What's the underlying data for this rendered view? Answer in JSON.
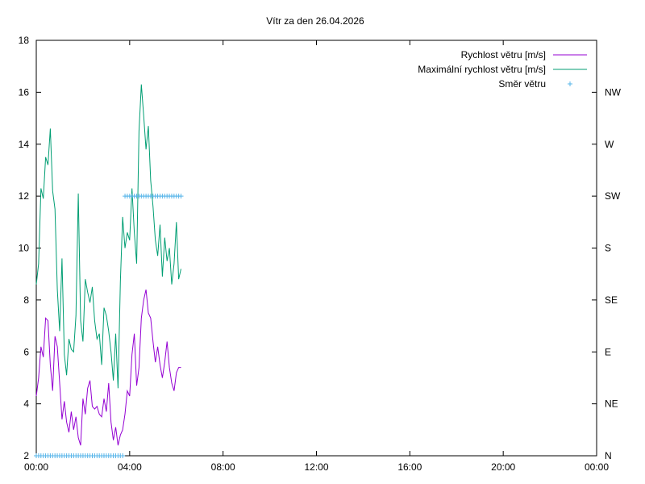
{
  "chart_data": {
    "type": "line",
    "title": "Vítr za den 26.04.2026",
    "x_ticks": [
      "00:00",
      "04:00",
      "08:00",
      "12:00",
      "16:00",
      "20:00",
      "00:00"
    ],
    "xlim_hours": [
      0,
      24
    ],
    "ylim": [
      2,
      18
    ],
    "y_ticks": [
      2,
      4,
      6,
      8,
      10,
      12,
      14,
      16,
      18
    ],
    "y2_ticks": [
      "N",
      "NE",
      "E",
      "SE",
      "S",
      "SW",
      "W",
      "NW"
    ],
    "legend_position": "top-right",
    "grid": false,
    "series": [
      {
        "name": "Rychlost větru [m/s]",
        "style": "line",
        "color": "#9400d3",
        "x": [
          0.0,
          0.1,
          0.2,
          0.3,
          0.4,
          0.5,
          0.6,
          0.7,
          0.8,
          0.9,
          1.0,
          1.1,
          1.2,
          1.3,
          1.4,
          1.5,
          1.6,
          1.7,
          1.8,
          1.9,
          2.0,
          2.1,
          2.2,
          2.3,
          2.4,
          2.5,
          2.6,
          2.7,
          2.8,
          2.9,
          3.0,
          3.1,
          3.2,
          3.3,
          3.4,
          3.5,
          3.6,
          3.7,
          3.8,
          3.9,
          4.0,
          4.1,
          4.2,
          4.3,
          4.4,
          4.5,
          4.6,
          4.7,
          4.8,
          4.9,
          5.0,
          5.1,
          5.2,
          5.3,
          5.4,
          5.5,
          5.6,
          5.7,
          5.8,
          5.9,
          6.0,
          6.1,
          6.2
        ],
        "values": [
          4.3,
          5.0,
          6.2,
          5.8,
          7.3,
          7.2,
          5.5,
          4.5,
          6.6,
          6.2,
          4.8,
          3.4,
          4.1,
          3.3,
          2.9,
          3.7,
          3.0,
          3.5,
          2.7,
          2.4,
          4.2,
          3.6,
          4.6,
          4.9,
          3.9,
          3.8,
          3.9,
          3.6,
          3.5,
          4.2,
          3.7,
          4.8,
          3.3,
          2.6,
          3.1,
          2.4,
          2.8,
          3.0,
          3.6,
          4.5,
          4.3,
          5.9,
          6.7,
          4.7,
          5.4,
          7.3,
          8.0,
          8.4,
          7.5,
          7.3,
          6.4,
          5.6,
          6.2,
          5.5,
          5.0,
          5.6,
          6.4,
          5.4,
          4.8,
          4.5,
          5.2,
          5.4,
          5.4
        ]
      },
      {
        "name": "Maximální rychlost větru [m/s]",
        "style": "line",
        "color": "#009e73",
        "x": [
          0.0,
          0.1,
          0.2,
          0.3,
          0.4,
          0.5,
          0.6,
          0.7,
          0.8,
          0.9,
          1.0,
          1.1,
          1.2,
          1.3,
          1.4,
          1.5,
          1.6,
          1.7,
          1.8,
          1.9,
          2.0,
          2.1,
          2.2,
          2.3,
          2.4,
          2.5,
          2.6,
          2.7,
          2.8,
          2.9,
          3.0,
          3.1,
          3.2,
          3.3,
          3.4,
          3.5,
          3.6,
          3.7,
          3.8,
          3.9,
          4.0,
          4.1,
          4.2,
          4.3,
          4.4,
          4.5,
          4.6,
          4.7,
          4.8,
          4.9,
          5.0,
          5.1,
          5.2,
          5.3,
          5.4,
          5.5,
          5.6,
          5.7,
          5.8,
          5.9,
          6.0,
          6.1,
          6.2
        ],
        "values": [
          8.6,
          9.4,
          12.3,
          11.9,
          13.5,
          13.2,
          14.6,
          12.2,
          11.5,
          8.4,
          6.8,
          9.6,
          5.9,
          5.1,
          6.5,
          6.1,
          6.0,
          7.4,
          12.1,
          7.2,
          6.4,
          8.8,
          8.3,
          7.9,
          8.5,
          7.2,
          6.5,
          6.7,
          5.5,
          7.7,
          7.4,
          6.8,
          6.0,
          4.9,
          6.7,
          4.6,
          8.7,
          11.2,
          10.0,
          10.6,
          10.3,
          12.3,
          10.6,
          9.4,
          14.5,
          16.3,
          15.1,
          13.8,
          14.7,
          12.6,
          11.6,
          10.3,
          9.7,
          10.9,
          8.9,
          10.4,
          9.5,
          10.0,
          8.6,
          9.4,
          11.0,
          8.8,
          9.2
        ]
      },
      {
        "name": "Směr větru",
        "style": "points",
        "color": "#56b4e9",
        "x": [
          0.0,
          0.1,
          0.2,
          0.3,
          0.4,
          0.5,
          0.6,
          0.7,
          0.8,
          0.9,
          1.0,
          1.1,
          1.2,
          1.3,
          1.4,
          1.5,
          1.6,
          1.7,
          1.8,
          1.9,
          2.0,
          2.1,
          2.2,
          2.3,
          2.4,
          2.5,
          2.6,
          2.7,
          2.8,
          2.9,
          3.0,
          3.1,
          3.2,
          3.3,
          3.4,
          3.5,
          3.6,
          3.7,
          3.8,
          3.9,
          4.0,
          4.1,
          4.2,
          4.3,
          4.4,
          4.5,
          4.6,
          4.7,
          4.8,
          4.9,
          5.0,
          5.1,
          5.2,
          5.3,
          5.4,
          5.5,
          5.6,
          5.7,
          5.8,
          5.9,
          6.0,
          6.1,
          6.2
        ],
        "values": [
          2,
          2,
          2,
          2,
          2,
          2,
          2,
          2,
          2,
          2,
          2,
          2,
          2,
          2,
          2,
          2,
          2,
          2,
          2,
          2,
          2,
          2,
          2,
          2,
          2,
          2,
          2,
          2,
          2,
          2,
          2,
          2,
          2,
          2,
          2,
          2,
          2,
          2,
          12,
          12,
          12,
          12,
          12,
          12,
          12,
          12,
          12,
          12,
          12,
          12,
          12,
          12,
          12,
          12,
          12,
          12,
          12,
          12,
          12,
          12,
          12,
          12,
          12
        ]
      }
    ]
  }
}
